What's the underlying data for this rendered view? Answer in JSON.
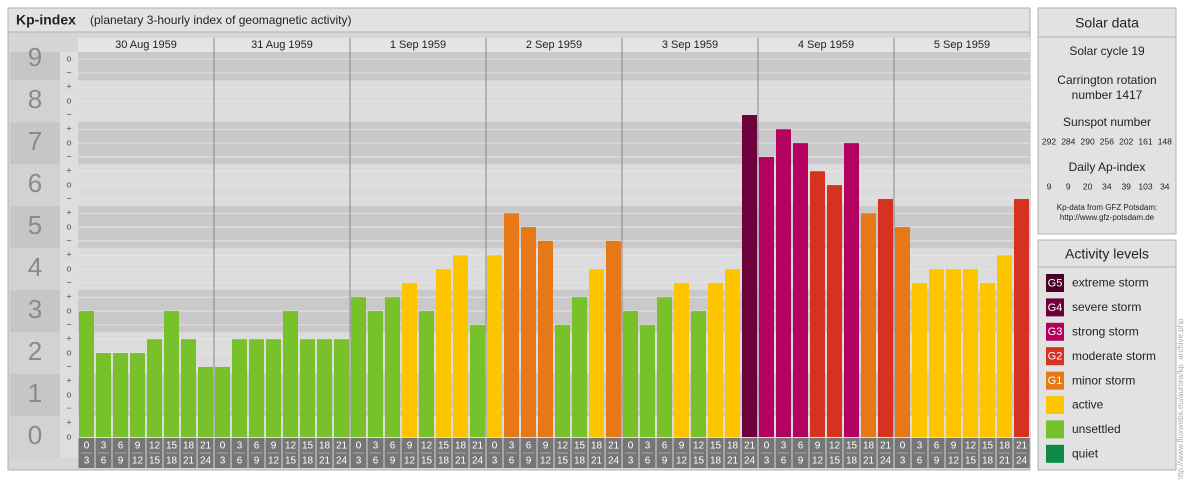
{
  "chart_data": {
    "type": "bar",
    "title": "Kp-index",
    "subtitle": "(planetary 3-hourly index of geomagnetic activity)",
    "ylim": [
      0,
      9.17
    ],
    "yticks": [
      0,
      1,
      2,
      3,
      4,
      5,
      6,
      7,
      8,
      9
    ],
    "minor_yticks": [
      {
        "value": 0,
        "label": "o"
      },
      {
        "value": 0.33,
        "label": "+"
      },
      {
        "value": 0.67,
        "label": "−"
      },
      {
        "value": 1,
        "label": "o"
      },
      {
        "value": 1.33,
        "label": "+"
      },
      {
        "value": 1.67,
        "label": "−"
      },
      {
        "value": 2,
        "label": "o"
      },
      {
        "value": 2.33,
        "label": "+"
      },
      {
        "value": 2.67,
        "label": "−"
      },
      {
        "value": 3,
        "label": "o"
      },
      {
        "value": 3.33,
        "label": "+"
      },
      {
        "value": 3.67,
        "label": "−"
      },
      {
        "value": 4,
        "label": "o"
      },
      {
        "value": 4.33,
        "label": "+"
      },
      {
        "value": 4.67,
        "label": "−"
      },
      {
        "value": 5,
        "label": "o"
      },
      {
        "value": 5.33,
        "label": "+"
      },
      {
        "value": 5.67,
        "label": "−"
      },
      {
        "value": 6,
        "label": "o"
      },
      {
        "value": 6.33,
        "label": "+"
      },
      {
        "value": 6.67,
        "label": "−"
      },
      {
        "value": 7,
        "label": "o"
      },
      {
        "value": 7.33,
        "label": "+"
      },
      {
        "value": 7.67,
        "label": "−"
      },
      {
        "value": 8,
        "label": "o"
      },
      {
        "value": 8.33,
        "label": "+"
      },
      {
        "value": 8.67,
        "label": "−"
      },
      {
        "value": 9,
        "label": "o"
      }
    ],
    "hour_bins": [
      0,
      3,
      6,
      9,
      12,
      15,
      18,
      21,
      24
    ],
    "series": [
      {
        "name": "30 Aug 1959",
        "values": [
          3,
          2,
          2,
          2,
          2.33,
          3,
          2.33,
          1.67
        ],
        "colors": [
          "#77c12a",
          "#77c12a",
          "#77c12a",
          "#77c12a",
          "#77c12a",
          "#77c12a",
          "#77c12a",
          "#77c12a"
        ]
      },
      {
        "name": "31 Aug 1959",
        "values": [
          1.67,
          2.33,
          2.33,
          2.33,
          3,
          2.33,
          2.33,
          2.33
        ],
        "colors": [
          "#77c12a",
          "#77c12a",
          "#77c12a",
          "#77c12a",
          "#77c12a",
          "#77c12a",
          "#77c12a",
          "#77c12a"
        ]
      },
      {
        "name": "1 Sep 1959",
        "values": [
          3.33,
          3,
          3.33,
          3.67,
          3,
          4,
          4.33,
          2.67
        ],
        "colors": [
          "#77c12a",
          "#77c12a",
          "#77c12a",
          "#fdc500",
          "#77c12a",
          "#fdc500",
          "#fdc500",
          "#77c12a"
        ]
      },
      {
        "name": "2 Sep 1959",
        "values": [
          4.33,
          5.33,
          5,
          4.67,
          2.67,
          3.33,
          4,
          4.67
        ],
        "colors": [
          "#fdc500",
          "#e67817",
          "#e67817",
          "#e67817",
          "#77c12a",
          "#77c12a",
          "#fdc500",
          "#e67817"
        ]
      },
      {
        "name": "3 Sep 1959",
        "values": [
          3,
          2.67,
          3.33,
          3.67,
          3,
          3.67,
          4,
          7.67
        ],
        "colors": [
          "#77c12a",
          "#77c12a",
          "#77c12a",
          "#fdc500",
          "#77c12a",
          "#fdc500",
          "#fdc500",
          "#6e003c"
        ]
      },
      {
        "name": "4 Sep 1959",
        "values": [
          6.67,
          7.33,
          7,
          6.33,
          6,
          7,
          5.33,
          5.67
        ],
        "colors": [
          "#b4005e",
          "#b4005e",
          "#b4005e",
          "#d63220",
          "#d63220",
          "#b4005e",
          "#e67817",
          "#d63220"
        ]
      },
      {
        "name": "5 Sep 1959",
        "values": [
          5,
          3.67,
          4,
          4,
          4,
          3.67,
          4.33,
          5.67
        ],
        "colors": [
          "#e67817",
          "#fdc500",
          "#fdc500",
          "#fdc500",
          "#fdc500",
          "#fdc500",
          "#fdc500",
          "#d63220"
        ]
      }
    ]
  },
  "solar_data": {
    "title": "Solar data",
    "cycle": "Solar cycle 19",
    "carrington": [
      "Carrington rotation",
      "number 1417"
    ],
    "sunspot_label": "Sunspot number",
    "sunspot": [
      292,
      284,
      290,
      256,
      202,
      161,
      148
    ],
    "ap_label": "Daily Ap-index",
    "ap": [
      9,
      9,
      20,
      34,
      39,
      103,
      34
    ],
    "source": [
      "Kp-data from GFZ Potsdam:",
      "http://www.gfz-potsdam.de"
    ]
  },
  "activity_levels": {
    "title": "Activity levels",
    "items": [
      {
        "code": "G5",
        "label": "extreme storm",
        "color": "#4a0024"
      },
      {
        "code": "G4",
        "label": "severe storm",
        "color": "#6e003c"
      },
      {
        "code": "G3",
        "label": "strong storm",
        "color": "#b4005e"
      },
      {
        "code": "G2",
        "label": "moderate storm",
        "color": "#d63220"
      },
      {
        "code": "G1",
        "label": "minor storm",
        "color": "#e67817"
      },
      {
        "label": "active",
        "color": "#fdc500"
      },
      {
        "label": "unsettled",
        "color": "#77c12a"
      },
      {
        "label": "quiet",
        "color": "#0b8a48"
      }
    ]
  },
  "credit": "http://www.fluxwebs.eu/aurora/kp_archive.php"
}
